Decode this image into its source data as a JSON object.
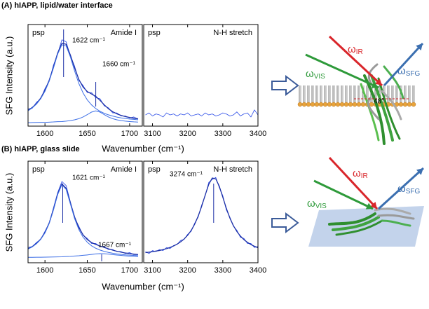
{
  "figure": {
    "rows": [
      {
        "label": "(A) hIAPP, lipid/water interface",
        "xlabel": "Wavenumber (cm⁻¹)",
        "ylabel": "SFG Intensity (a.u.)"
      },
      {
        "label": "(B) hIAPP, glass slide",
        "xlabel": "Wavenumber (cm⁻¹)",
        "ylabel": "SFG Intensity (a.u.)"
      }
    ],
    "diagrams": [
      {
        "beams": [
          {
            "symbol": "ω",
            "sub": "IR",
            "color": "#d9262b"
          },
          {
            "symbol": "ω",
            "sub": "VIS",
            "color": "#2e9a3a"
          },
          {
            "symbol": "ω",
            "sub": "SFG",
            "color": "#3b6fb0"
          }
        ],
        "angle": "48°"
      },
      {
        "beams": [
          {
            "symbol": "ω",
            "sub": "IR",
            "color": "#d9262b"
          },
          {
            "symbol": "ω",
            "sub": "VIS",
            "color": "#2e9a3a"
          },
          {
            "symbol": "ω",
            "sub": "SFG",
            "color": "#3b6fb0"
          }
        ]
      }
    ]
  },
  "chart_data": [
    {
      "type": "line",
      "corner_labels": [
        "psp",
        "Amide I"
      ],
      "x": [
        1580,
        1585,
        1590,
        1595,
        1600,
        1605,
        1610,
        1615,
        1620,
        1625,
        1630,
        1635,
        1640,
        1645,
        1650,
        1655,
        1660,
        1665,
        1670,
        1675,
        1680,
        1685,
        1690,
        1695,
        1700,
        1705,
        1710
      ],
      "series": [
        {
          "color": "#2b4ce8",
          "values": [
            0.17,
            0.176,
            0.235,
            0.268,
            0.37,
            0.44,
            0.6,
            0.71,
            0.85,
            0.83,
            0.69,
            0.59,
            0.45,
            0.4,
            0.33,
            0.33,
            0.28,
            0.27,
            0.2,
            0.18,
            0.13,
            0.13,
            0.1,
            0.1,
            0.08,
            0.09,
            0.07
          ]
        },
        {
          "color": "#1c2fa6",
          "values": [
            0.155,
            0.184,
            0.222,
            0.277,
            0.353,
            0.452,
            0.58,
            0.72,
            0.815,
            0.806,
            0.7,
            0.575,
            0.46,
            0.385,
            0.34,
            0.317,
            0.293,
            0.254,
            0.21,
            0.171,
            0.142,
            0.121,
            0.105,
            0.094,
            0.085,
            0.078,
            0.072
          ]
        },
        {
          "color": "#3d6fe6",
          "values": [
            0.151,
            0.179,
            0.217,
            0.27,
            0.343,
            0.443,
            0.57,
            0.708,
            0.801,
            0.789,
            0.681,
            0.543,
            0.42,
            0.327,
            0.258,
            0.209,
            0.173,
            0.146,
            0.126,
            0.111,
            0.099,
            0.089,
            0.081,
            0.075,
            0.07,
            0.066,
            0.062
          ]
        },
        {
          "color": "#3d6fe6",
          "values": [
            0.034,
            0.035,
            0.036,
            0.037,
            0.037,
            0.039,
            0.041,
            0.044,
            0.045,
            0.049,
            0.054,
            0.062,
            0.073,
            0.09,
            0.113,
            0.138,
            0.15,
            0.138,
            0.113,
            0.09,
            0.073,
            0.062,
            0.054,
            0.049,
            0.045,
            0.042,
            0.04
          ]
        }
      ],
      "annotations": [
        {
          "text": "1622 cm⁻¹",
          "x": 1622
        },
        {
          "text": "1660 cm⁻¹",
          "x": 1660
        }
      ],
      "xlim": [
        1580,
        1715
      ],
      "xticks": [
        1600,
        1650,
        1700
      ],
      "ylim": [
        0,
        1
      ]
    },
    {
      "type": "line",
      "corner_labels": [
        "psp",
        "N-H stretch"
      ],
      "x": [
        3080,
        3090,
        3100,
        3110,
        3120,
        3130,
        3140,
        3150,
        3160,
        3170,
        3180,
        3190,
        3200,
        3210,
        3220,
        3230,
        3240,
        3250,
        3260,
        3270,
        3280,
        3290,
        3300,
        3310,
        3320,
        3330,
        3340,
        3350,
        3360,
        3370,
        3380,
        3390,
        3400
      ],
      "series": [
        {
          "color": "#2b4ce8",
          "values": [
            0.11,
            0.13,
            0.1,
            0.12,
            0.11,
            0.09,
            0.13,
            0.11,
            0.12,
            0.1,
            0.12,
            0.11,
            0.13,
            0.1,
            0.11,
            0.12,
            0.1,
            0.13,
            0.11,
            0.12,
            0.1,
            0.11,
            0.13,
            0.12,
            0.1,
            0.11,
            0.14,
            0.1,
            0.12,
            0.13,
            0.09,
            0.16,
            0.11
          ]
        }
      ],
      "xlim": [
        3075,
        3400
      ],
      "xticks": [
        3100,
        3200,
        3300,
        3400
      ],
      "ylim": [
        0,
        1
      ]
    },
    {
      "type": "line",
      "corner_labels": [
        "psp",
        "Amide I"
      ],
      "x": [
        1580,
        1585,
        1590,
        1595,
        1600,
        1605,
        1610,
        1615,
        1620,
        1625,
        1630,
        1635,
        1640,
        1645,
        1650,
        1655,
        1660,
        1665,
        1670,
        1675,
        1680,
        1685,
        1690,
        1695,
        1700,
        1705,
        1710
      ],
      "series": [
        {
          "color": "#2b4ce8",
          "values": [
            0.15,
            0.16,
            0.2,
            0.23,
            0.31,
            0.39,
            0.54,
            0.69,
            0.8,
            0.76,
            0.6,
            0.44,
            0.36,
            0.27,
            0.24,
            0.19,
            0.19,
            0.16,
            0.16,
            0.13,
            0.13,
            0.11,
            0.11,
            0.09,
            0.1,
            0.08,
            0.08
          ]
        },
        {
          "color": "#1c2fa6",
          "values": [
            0.138,
            0.159,
            0.191,
            0.234,
            0.298,
            0.392,
            0.525,
            0.678,
            0.776,
            0.733,
            0.592,
            0.451,
            0.346,
            0.275,
            0.229,
            0.199,
            0.18,
            0.165,
            0.151,
            0.137,
            0.124,
            0.113,
            0.104,
            0.096,
            0.09,
            0.085,
            0.081
          ]
        },
        {
          "color": "#3d6fe6",
          "values": [
            0.135,
            0.156,
            0.187,
            0.23,
            0.293,
            0.386,
            0.518,
            0.67,
            0.767,
            0.722,
            0.579,
            0.435,
            0.327,
            0.252,
            0.202,
            0.167,
            0.143,
            0.125,
            0.112,
            0.102,
            0.094,
            0.087,
            0.082,
            0.078,
            0.075,
            0.072,
            0.07
          ]
        },
        {
          "color": "#3d6fe6",
          "values": [
            0.053,
            0.053,
            0.054,
            0.054,
            0.055,
            0.056,
            0.057,
            0.058,
            0.059,
            0.061,
            0.063,
            0.066,
            0.069,
            0.073,
            0.077,
            0.082,
            0.087,
            0.09,
            0.089,
            0.085,
            0.08,
            0.076,
            0.072,
            0.068,
            0.065,
            0.063,
            0.061
          ]
        }
      ],
      "annotations": [
        {
          "text": "1621 cm⁻¹",
          "x": 1621
        },
        {
          "text": "1667 cm⁻¹",
          "x": 1667
        }
      ],
      "xlim": [
        1580,
        1715
      ],
      "xticks": [
        1600,
        1650,
        1700
      ],
      "ylim": [
        0,
        1
      ]
    },
    {
      "type": "line",
      "corner_labels": [
        "psp",
        "N-H stretch"
      ],
      "x": [
        3080,
        3090,
        3100,
        3110,
        3120,
        3130,
        3140,
        3150,
        3160,
        3170,
        3180,
        3190,
        3200,
        3210,
        3220,
        3230,
        3240,
        3250,
        3260,
        3270,
        3280,
        3290,
        3300,
        3310,
        3320,
        3330,
        3340,
        3350,
        3360,
        3370,
        3380,
        3390,
        3400
      ],
      "series": [
        {
          "color": "#2b4ce8",
          "values": [
            0.11,
            0.09,
            0.12,
            0.11,
            0.13,
            0.12,
            0.15,
            0.14,
            0.17,
            0.18,
            0.22,
            0.23,
            0.28,
            0.31,
            0.39,
            0.45,
            0.57,
            0.66,
            0.79,
            0.82,
            0.84,
            0.74,
            0.66,
            0.52,
            0.45,
            0.36,
            0.32,
            0.25,
            0.24,
            0.19,
            0.19,
            0.15,
            0.16
          ]
        },
        {
          "color": "#1c2fa6",
          "values": [
            0.1,
            0.104,
            0.109,
            0.115,
            0.121,
            0.129,
            0.139,
            0.151,
            0.165,
            0.183,
            0.206,
            0.234,
            0.271,
            0.318,
            0.38,
            0.459,
            0.557,
            0.667,
            0.771,
            0.834,
            0.826,
            0.753,
            0.645,
            0.536,
            0.441,
            0.366,
            0.308,
            0.263,
            0.228,
            0.201,
            0.179,
            0.162,
            0.148
          ]
        }
      ],
      "annotations": [
        {
          "text": "3274 cm⁻¹",
          "x": 3274
        }
      ],
      "xlim": [
        3075,
        3400
      ],
      "xticks": [
        3100,
        3200,
        3300,
        3400
      ],
      "ylim": [
        0,
        1
      ]
    }
  ]
}
